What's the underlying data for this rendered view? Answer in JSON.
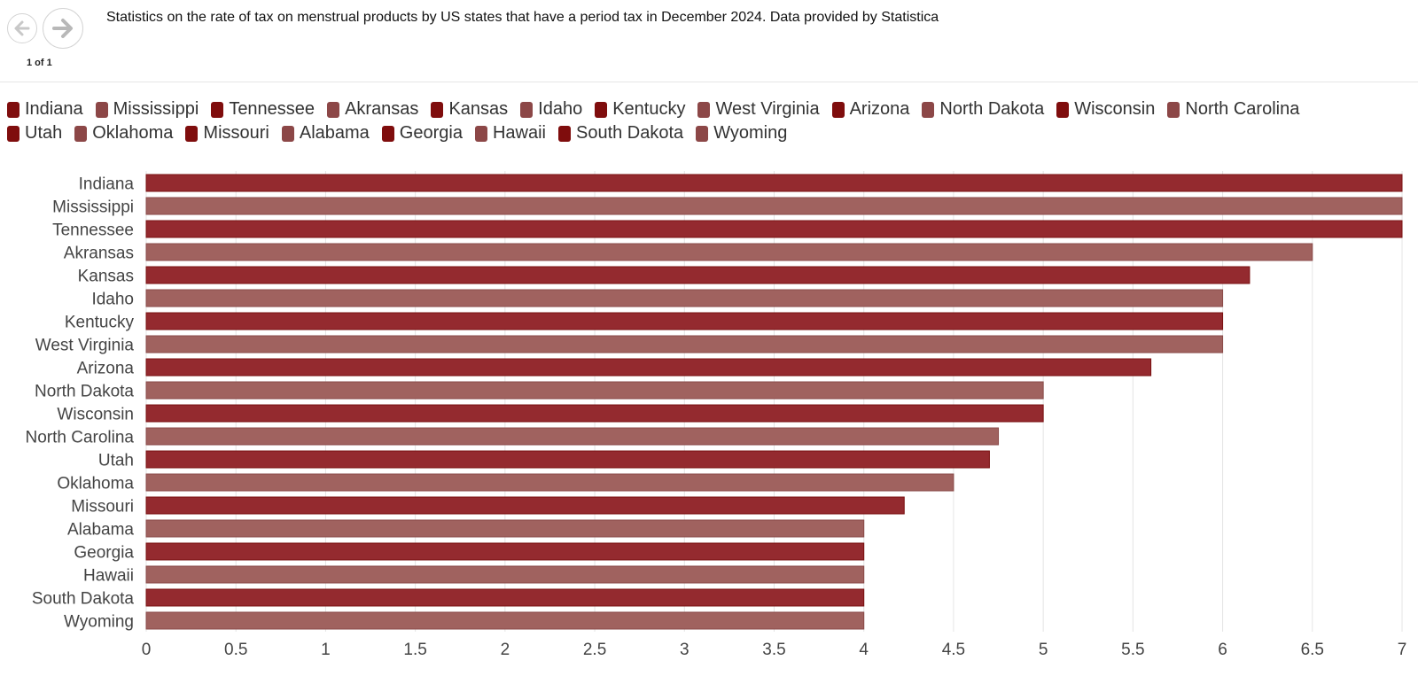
{
  "header": {
    "title": "Statistics on the rate of tax on menstrual products by US states that have a period tax in December 2024. Data provided by Statistica",
    "page_count": "1 of 1",
    "prev_icon": "arrow-left-icon",
    "next_icon": "arrow-right-icon"
  },
  "colors": {
    "dark": "#942a2f",
    "light": "#a0625f",
    "dark_stroke": "#7a1010",
    "light_stroke": "#8a4a48",
    "legend_dark": "#7f0d0d",
    "legend_light": "#8c4747",
    "grid": "#e4e4e4"
  },
  "chart_data": {
    "type": "bar",
    "orientation": "horizontal",
    "categories": [
      "Indiana",
      "Mississippi",
      "Tennessee",
      "Akransas",
      "Kansas",
      "Idaho",
      "Kentucky",
      "West Virginia",
      "Arizona",
      "North Dakota",
      "Wisconsin",
      "North Carolina",
      "Utah",
      "Oklahoma",
      "Missouri",
      "Alabama",
      "Georgia",
      "Hawaii",
      "South Dakota",
      "Wyoming"
    ],
    "values": [
      7,
      7,
      7,
      6.5,
      6.15,
      6,
      6,
      6,
      5.6,
      5,
      5,
      4.75,
      4.7,
      4.5,
      4.225,
      4,
      4,
      4,
      4,
      4
    ],
    "xlim": [
      0,
      7
    ],
    "xticks": [
      0,
      0.5,
      1,
      1.5,
      2,
      2.5,
      3,
      3.5,
      4,
      4.5,
      5,
      5.5,
      6,
      6.5,
      7
    ],
    "tick_labels": [
      "0",
      "0.5",
      "1",
      "1.5",
      "2",
      "2.5",
      "3",
      "3.5",
      "4",
      "4.5",
      "5",
      "5.5",
      "6",
      "6.5",
      "7"
    ],
    "grid": true,
    "legend_position": "top",
    "title": "",
    "xlabel": "",
    "ylabel": ""
  }
}
